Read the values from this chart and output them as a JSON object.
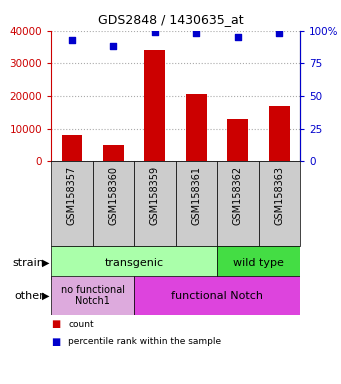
{
  "title": "GDS2848 / 1430635_at",
  "samples": [
    "GSM158357",
    "GSM158360",
    "GSM158359",
    "GSM158361",
    "GSM158362",
    "GSM158363"
  ],
  "counts": [
    8200,
    5000,
    34000,
    20500,
    13000,
    17000
  ],
  "percentiles": [
    93,
    88,
    99,
    98,
    95,
    98
  ],
  "ylim_left": [
    0,
    40000
  ],
  "ylim_right": [
    0,
    100
  ],
  "yticks_left": [
    0,
    10000,
    20000,
    30000,
    40000
  ],
  "yticks_right": [
    0,
    25,
    50,
    75,
    100
  ],
  "bar_color": "#cc0000",
  "scatter_color": "#0000cc",
  "transgenic_color": "#aaffaa",
  "wildtype_color": "#44dd44",
  "nofunc_color": "#ddaadd",
  "func_color": "#dd44dd",
  "tick_label_color": "#cc0000",
  "right_tick_color": "#0000cc",
  "grid_color": "#aaaaaa",
  "bg_color": "#ffffff",
  "bar_width": 0.5,
  "xtick_bg_color": "#cccccc"
}
